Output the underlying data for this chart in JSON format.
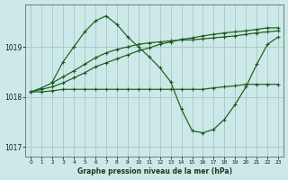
{
  "title": "Graphe pression niveau de la mer (hPa)",
  "background_color": "#cce8e8",
  "grid_color": "#aacccc",
  "line_color": "#1a5c1a",
  "xlim": [
    -0.5,
    23.5
  ],
  "ylim": [
    1016.8,
    1019.85
  ],
  "yticks": [
    1017,
    1018,
    1019
  ],
  "xticks": [
    0,
    1,
    2,
    3,
    4,
    5,
    6,
    7,
    8,
    9,
    10,
    11,
    12,
    13,
    14,
    15,
    16,
    17,
    18,
    19,
    20,
    21,
    22,
    23
  ],
  "lines": [
    {
      "x": [
        0,
        1,
        2,
        3,
        4,
        5,
        6,
        7,
        8,
        9,
        10,
        11,
        12,
        13,
        14,
        15,
        16,
        17,
        18,
        19,
        20,
        21,
        22,
        23
      ],
      "y": [
        1018.1,
        1018.1,
        1018.12,
        1018.15,
        1018.15,
        1018.15,
        1018.15,
        1018.15,
        1018.15,
        1018.15,
        1018.15,
        1018.15,
        1018.15,
        1018.15,
        1018.15,
        1018.15,
        1018.15,
        1018.18,
        1018.2,
        1018.22,
        1018.25,
        1018.25,
        1018.25,
        1018.25
      ]
    },
    {
      "x": [
        0,
        1,
        2,
        3,
        4,
        5,
        6,
        7,
        8,
        9,
        10,
        11,
        12,
        13,
        14,
        15,
        16,
        17,
        18,
        19,
        20,
        21,
        22,
        23
      ],
      "y": [
        1018.1,
        1018.15,
        1018.2,
        1018.28,
        1018.38,
        1018.48,
        1018.6,
        1018.68,
        1018.76,
        1018.84,
        1018.92,
        1018.98,
        1019.05,
        1019.1,
        1019.15,
        1019.18,
        1019.22,
        1019.25,
        1019.28,
        1019.3,
        1019.32,
        1019.35,
        1019.38,
        1019.38
      ]
    },
    {
      "x": [
        0,
        1,
        2,
        3,
        4,
        5,
        6,
        7,
        8,
        9,
        10,
        11,
        12,
        13,
        14,
        15,
        16,
        17,
        18,
        19,
        20,
        21,
        22,
        23
      ],
      "y": [
        1018.1,
        1018.18,
        1018.28,
        1018.4,
        1018.52,
        1018.65,
        1018.78,
        1018.88,
        1018.95,
        1019.0,
        1019.05,
        1019.08,
        1019.1,
        1019.12,
        1019.14,
        1019.14,
        1019.16,
        1019.18,
        1019.2,
        1019.22,
        1019.25,
        1019.28,
        1019.3,
        1019.32
      ]
    },
    {
      "x": [
        2,
        3,
        4,
        5,
        6,
        7,
        8,
        9,
        10,
        11,
        12,
        13,
        14,
        15,
        16,
        17,
        18,
        19,
        20,
        21,
        22,
        23
      ],
      "y": [
        1018.3,
        1018.7,
        1019.0,
        1019.3,
        1019.52,
        1019.62,
        1019.45,
        1019.2,
        1019.0,
        1018.8,
        1018.58,
        1018.3,
        1017.75,
        1017.32,
        1017.28,
        1017.35,
        1017.55,
        1017.85,
        1018.2,
        1018.65,
        1019.05,
        1019.2
      ]
    }
  ]
}
